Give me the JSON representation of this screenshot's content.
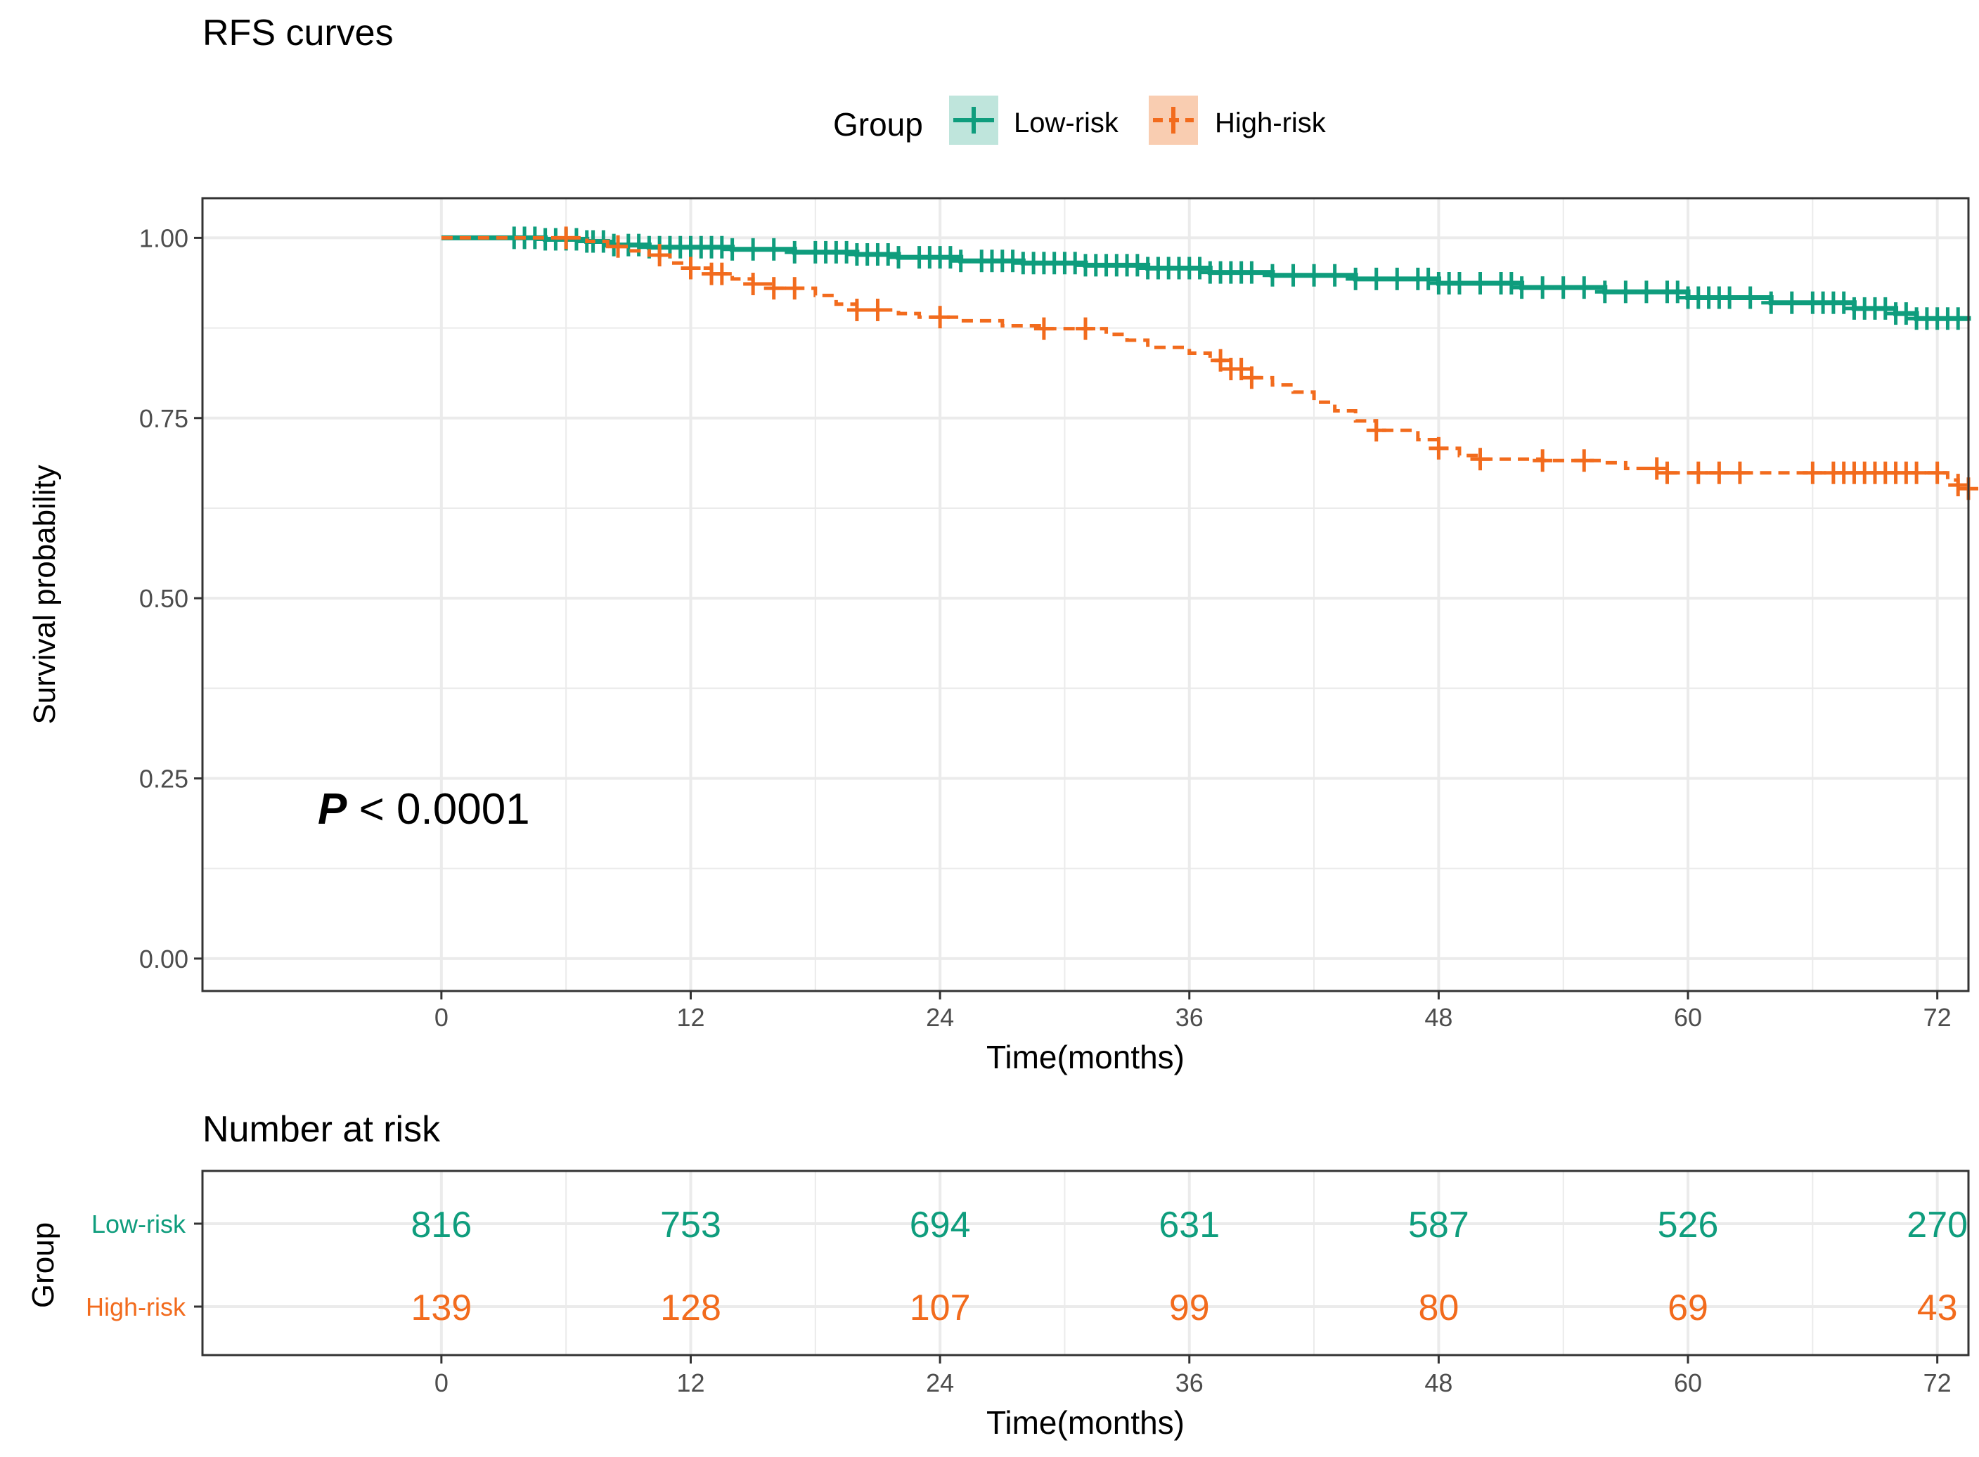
{
  "chart_data": {
    "type": "line",
    "subtype": "kaplan-meier",
    "title": "RFS curves",
    "legend": {
      "title": "Group",
      "position": "top",
      "entries": [
        "Low-risk",
        "High-risk"
      ]
    },
    "xlabel": "Time(months)",
    "ylabel": "Survival probability",
    "xlim": [
      -11.5,
      73.5
    ],
    "ylim": [
      -0.045,
      1.055
    ],
    "xticks": [
      0,
      12,
      24,
      36,
      48,
      60,
      72
    ],
    "xtick_labels": [
      "0",
      "12",
      "24",
      "36",
      "48",
      "60",
      "72"
    ],
    "yticks": [
      0,
      0.25,
      0.5,
      0.75,
      1
    ],
    "ytick_labels": [
      "0.00",
      "0.25",
      "0.50",
      "0.75",
      "1.00"
    ],
    "grid": true,
    "annotation": {
      "italic": "P",
      "rest": " < 0.0001",
      "at": [
        1.6,
        0.19
      ]
    },
    "colors": {
      "Low-risk": "#0f9d7d",
      "High-risk": "#f26b1d",
      "text": "#000000",
      "tick": "#4d4d4d",
      "grid": "#ebebeb"
    },
    "series": [
      {
        "name": "Low-risk",
        "dash": "solid",
        "steps": [
          [
            0,
            1.0
          ],
          [
            5,
            0.998
          ],
          [
            7,
            0.995
          ],
          [
            8,
            0.99
          ],
          [
            10,
            0.987
          ],
          [
            14,
            0.984
          ],
          [
            17,
            0.98
          ],
          [
            20,
            0.977
          ],
          [
            22,
            0.973
          ],
          [
            25,
            0.968
          ],
          [
            28,
            0.965
          ],
          [
            31,
            0.962
          ],
          [
            34,
            0.958
          ],
          [
            37,
            0.952
          ],
          [
            40,
            0.948
          ],
          [
            44,
            0.943
          ],
          [
            48,
            0.937
          ],
          [
            52,
            0.931
          ],
          [
            56,
            0.925
          ],
          [
            60,
            0.917
          ],
          [
            64,
            0.91
          ],
          [
            68,
            0.902
          ],
          [
            70,
            0.895
          ],
          [
            71,
            0.888
          ],
          [
            73.5,
            0.885
          ]
        ],
        "censor": [
          3.5,
          4,
          4.5,
          5,
          5.5,
          6,
          6.5,
          7,
          7.3,
          7.8,
          8.3,
          9,
          9.5,
          10,
          10.5,
          11,
          11.5,
          12,
          12.5,
          13,
          13.5,
          14,
          15,
          16,
          17,
          18,
          18.5,
          19,
          19.5,
          20,
          20.5,
          21,
          21.5,
          22,
          23,
          23.5,
          24,
          24.5,
          25,
          26,
          26.5,
          27,
          27.5,
          28,
          28.5,
          29,
          29.5,
          30,
          30.5,
          31,
          31.5,
          32,
          32.5,
          33,
          33.5,
          34,
          34.5,
          35,
          35.5,
          36,
          36.5,
          37,
          37.5,
          38,
          38.5,
          39,
          40,
          41,
          42,
          43,
          44,
          45,
          46,
          47,
          47.5,
          48,
          48.5,
          49,
          50,
          51,
          51.5,
          52,
          53,
          54,
          55,
          56,
          57,
          58,
          59,
          59.5,
          60,
          60.5,
          61,
          61.5,
          62,
          63,
          64,
          65,
          66,
          66.5,
          67,
          67.5,
          68,
          68.5,
          69,
          69.5,
          70,
          70.5,
          71,
          71.5,
          72,
          72.5,
          73
        ]
      },
      {
        "name": "High-risk",
        "dash": "dashed",
        "steps": [
          [
            0,
            1.0
          ],
          [
            7,
            0.995
          ],
          [
            8,
            0.988
          ],
          [
            9,
            0.982
          ],
          [
            10,
            0.976
          ],
          [
            11,
            0.965
          ],
          [
            12,
            0.958
          ],
          [
            13,
            0.95
          ],
          [
            14,
            0.943
          ],
          [
            15,
            0.936
          ],
          [
            16,
            0.93
          ],
          [
            18,
            0.92
          ],
          [
            19,
            0.908
          ],
          [
            20,
            0.9
          ],
          [
            22,
            0.895
          ],
          [
            23,
            0.89
          ],
          [
            25,
            0.885
          ],
          [
            27,
            0.878
          ],
          [
            29,
            0.874
          ],
          [
            32,
            0.866
          ],
          [
            33,
            0.858
          ],
          [
            34,
            0.848
          ],
          [
            36,
            0.84
          ],
          [
            37,
            0.83
          ],
          [
            38,
            0.818
          ],
          [
            39,
            0.806
          ],
          [
            40,
            0.796
          ],
          [
            41,
            0.786
          ],
          [
            42,
            0.772
          ],
          [
            43,
            0.76
          ],
          [
            44,
            0.746
          ],
          [
            45,
            0.733
          ],
          [
            47,
            0.72
          ],
          [
            48,
            0.708
          ],
          [
            49,
            0.698
          ],
          [
            50,
            0.693
          ],
          [
            53,
            0.691
          ],
          [
            56,
            0.688
          ],
          [
            57,
            0.68
          ],
          [
            59,
            0.674
          ],
          [
            70,
            0.674
          ],
          [
            72.5,
            0.664
          ],
          [
            73,
            0.657
          ],
          [
            73.5,
            0.652
          ]
        ],
        "censor": [
          6,
          8.5,
          10.5,
          12,
          13,
          13.5,
          15,
          16,
          17,
          20,
          21,
          24,
          29,
          31,
          37.5,
          38,
          38.5,
          39,
          45,
          48,
          50,
          53,
          55,
          58.5,
          59,
          60.5,
          61.5,
          62.5,
          66,
          67,
          67.5,
          68,
          68.5,
          69,
          69.5,
          70,
          70.5,
          71,
          72,
          73,
          73.5
        ]
      }
    ],
    "risk_table": {
      "title": "Number at risk",
      "ylabel": "Group",
      "xlabel": "Time(months)",
      "rows": [
        {
          "name": "Low-risk",
          "values": [
            816,
            753,
            694,
            631,
            587,
            526,
            270
          ]
        },
        {
          "name": "High-risk",
          "values": [
            139,
            128,
            107,
            99,
            80,
            69,
            43
          ]
        }
      ]
    }
  }
}
